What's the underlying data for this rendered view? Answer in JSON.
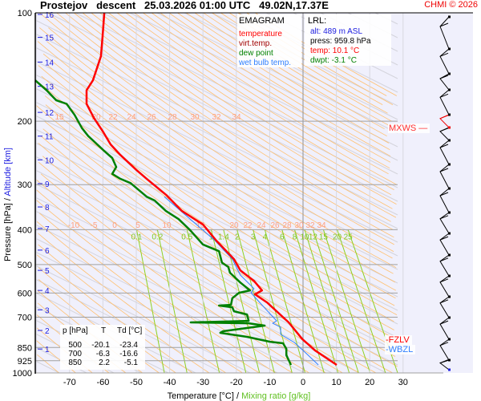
{
  "header": {
    "title": "Prostejov   descent   25.03.2026 01:00 UTC   49.02N,17.37E",
    "copyright": "CHMI © 2026"
  },
  "legend": {
    "title": "EMAGRAM",
    "items": [
      {
        "label": "temperature",
        "color": "#ff0000"
      },
      {
        "label": "virt.temp.",
        "color": "#a00000"
      },
      {
        "label": "dew point",
        "color": "#008000"
      },
      {
        "label": "wet bulb temp.",
        "color": "#3080ff"
      }
    ]
  },
  "lrl": {
    "title": "LRL:",
    "alt": "alt: 489 m ASL",
    "press": "press: 959.8 hPa",
    "temp": "temp: 10.1 °C",
    "dwpt": "dwpt: -3.1 °C"
  },
  "table": {
    "headers": [
      "p [hPa]",
      "T",
      "Td [°C]"
    ],
    "rows": [
      [
        "500",
        "-20.1",
        "-23.4"
      ],
      [
        "700",
        "-6.3",
        "-16.6"
      ],
      [
        "850",
        "2.2",
        "-5.1"
      ]
    ]
  },
  "levels": {
    "mxws": "MXWS",
    "fzlv": "FZLV",
    "wbzl": "WBZL"
  },
  "chart_data": {
    "type": "line",
    "title": "EMAGRAM",
    "xlabel": "Temperature [°C]",
    "xlabel2": "Mixing ratio [g/kg]",
    "ylabel": "Pressure [hPa]",
    "ylabel2": "Altitude [km]",
    "xlim": [
      -80,
      30
    ],
    "ylim_hpa": [
      1000,
      100
    ],
    "x_ticks": [
      -70,
      -60,
      -50,
      -40,
      -30,
      -20,
      -10,
      0,
      10,
      20,
      30
    ],
    "pressure_ticks": [
      100,
      200,
      300,
      400,
      500,
      600,
      700,
      850,
      925,
      1000
    ],
    "altitude_ticks_km": [
      {
        "km": 16,
        "hpa": 101
      },
      {
        "km": 15,
        "hpa": 117
      },
      {
        "km": 14,
        "hpa": 137
      },
      {
        "km": 13,
        "hpa": 160
      },
      {
        "km": 12,
        "hpa": 189
      },
      {
        "km": 11,
        "hpa": 220
      },
      {
        "km": 10,
        "hpa": 256
      },
      {
        "km": 9,
        "hpa": 298
      },
      {
        "km": 8,
        "hpa": 346
      },
      {
        "km": 7,
        "hpa": 397
      },
      {
        "km": 6,
        "hpa": 456
      },
      {
        "km": 5,
        "hpa": 519
      },
      {
        "km": 4,
        "hpa": 590
      },
      {
        "km": 3,
        "hpa": 668
      },
      {
        "km": 2,
        "hpa": 762
      },
      {
        "km": 1,
        "hpa": 858
      }
    ],
    "mixing_ratio_labels": [
      "0.1",
      "0.2",
      "0.5",
      "1",
      "1.4",
      "2",
      "3",
      "4",
      "6",
      "8",
      "10",
      "12",
      "15",
      "20",
      "25"
    ],
    "theta_labels_400": [
      "-10",
      "-5",
      "0",
      "5",
      "10",
      "15",
      "20",
      "22",
      "24",
      "26",
      "28",
      "30",
      "32",
      "34"
    ],
    "theta_labels_200": [
      "15",
      "20",
      "22",
      "24",
      "26",
      "28",
      "30",
      "32",
      "34"
    ],
    "series": [
      {
        "name": "temperature",
        "color": "#ff0000",
        "points": [
          [
            100,
            -59.6
          ],
          [
            116,
            -60.1
          ],
          [
            132,
            -60.6
          ],
          [
            154,
            -63.0
          ],
          [
            164,
            -64.9
          ],
          [
            179,
            -64.9
          ],
          [
            196,
            -62.7
          ],
          [
            213,
            -60.1
          ],
          [
            232,
            -57.7
          ],
          [
            248,
            -54.8
          ],
          [
            273,
            -50.0
          ],
          [
            289,
            -46.9
          ],
          [
            320,
            -41.1
          ],
          [
            355,
            -36.3
          ],
          [
            387,
            -30.0
          ],
          [
            429,
            -26.0
          ],
          [
            483,
            -20.7
          ],
          [
            519,
            -18.8
          ],
          [
            555,
            -14.7
          ],
          [
            590,
            -12.3
          ],
          [
            605,
            -14.4
          ],
          [
            637,
            -10.8
          ],
          [
            724,
            -4.3
          ],
          [
            806,
            -0.2
          ],
          [
            866,
            3.6
          ],
          [
            950,
            10.1
          ]
        ]
      },
      {
        "name": "wet bulb temp.",
        "color": "#3080ff",
        "points": [
          [
            324,
            -41.6
          ],
          [
            429,
            -26.4
          ],
          [
            483,
            -21.2
          ],
          [
            535,
            -18.8
          ],
          [
            583,
            -14.7
          ],
          [
            599,
            -15.6
          ],
          [
            624,
            -13.9
          ],
          [
            671,
            -10.8
          ],
          [
            717,
            -7.9
          ],
          [
            728,
            -9.1
          ],
          [
            746,
            -6.7
          ],
          [
            782,
            -6.7
          ],
          [
            823,
            -2.6
          ],
          [
            866,
            0.0
          ],
          [
            950,
            4.6
          ]
        ]
      },
      {
        "name": "dew point",
        "color": "#008000",
        "points": [
          [
            154,
            -80.3
          ],
          [
            164,
            -76.9
          ],
          [
            175,
            -74.0
          ],
          [
            179,
            -70.9
          ],
          [
            192,
            -68.5
          ],
          [
            209,
            -66.3
          ],
          [
            220,
            -64.4
          ],
          [
            242,
            -59.6
          ],
          [
            253,
            -57.2
          ],
          [
            268,
            -56.0
          ],
          [
            280,
            -57.2
          ],
          [
            289,
            -54.8
          ],
          [
            297,
            -51.7
          ],
          [
            324,
            -46.9
          ],
          [
            332,
            -44.5
          ],
          [
            355,
            -41.1
          ],
          [
            374,
            -37.3
          ],
          [
            401,
            -33.9
          ],
          [
            440,
            -30.0
          ],
          [
            459,
            -25.2
          ],
          [
            494,
            -24.3
          ],
          [
            508,
            -22.4
          ],
          [
            527,
            -21.9
          ],
          [
            561,
            -18.8
          ],
          [
            590,
            -15.9
          ],
          [
            599,
            -19.2
          ],
          [
            620,
            -21.2
          ],
          [
            647,
            -21.6
          ],
          [
            650,
            -25.2
          ],
          [
            657,
            -21.2
          ],
          [
            674,
            -20.7
          ],
          [
            688,
            -16.8
          ],
          [
            717,
            -16.3
          ],
          [
            724,
            -33.7
          ],
          [
            728,
            -16.3
          ],
          [
            739,
            -11.5
          ],
          [
            766,
            -24.0
          ],
          [
            774,
            -24.8
          ],
          [
            794,
            -16.8
          ],
          [
            819,
            -9.9
          ],
          [
            827,
            -6.0
          ],
          [
            857,
            -5.0
          ],
          [
            893,
            -5.0
          ],
          [
            950,
            -3.6
          ]
        ]
      }
    ]
  }
}
